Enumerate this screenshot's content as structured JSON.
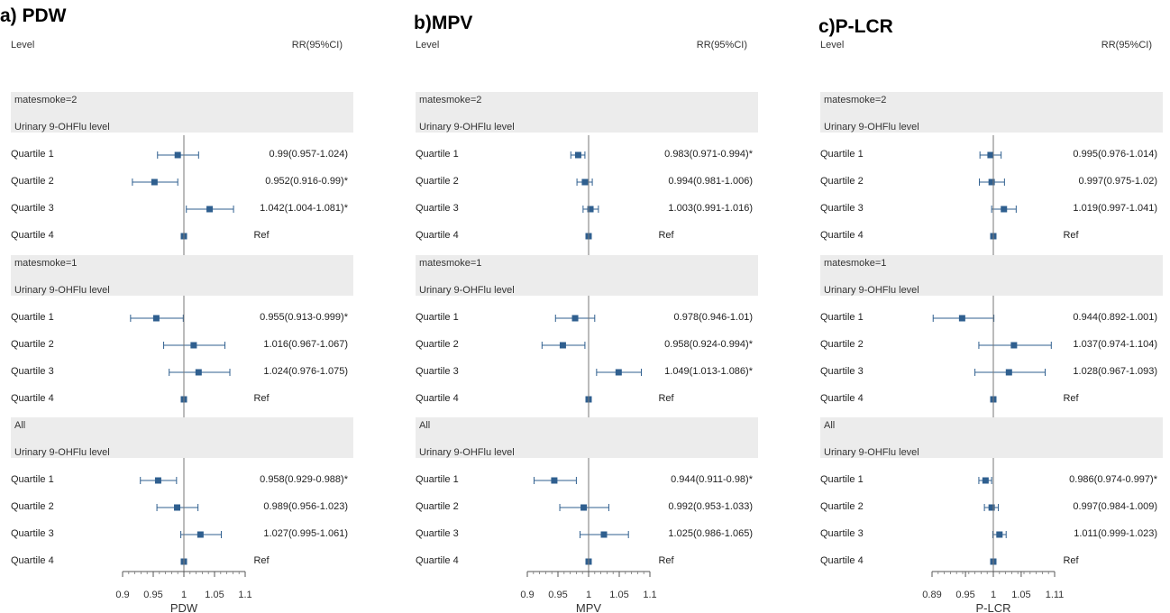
{
  "column_headers": {
    "level": "Level",
    "rr": "RR(95%CI)"
  },
  "sublabel": "Urinary 9-OHFlu level",
  "marker_color": "#2f5f8f",
  "band_color": "#ececec",
  "chart_data": [
    {
      "type": "forest",
      "title": "a) PDW",
      "xlabel": "PDW",
      "xlim": [
        0.9,
        1.1
      ],
      "ticks": [
        0.9,
        0.95,
        1,
        1.05,
        1.1
      ],
      "tick_labels": [
        "0.9",
        "0.95",
        "1",
        "1.05",
        "1.1"
      ],
      "reference_line": 1,
      "groups": [
        {
          "name": "matesmoke=2",
          "rows": [
            {
              "label": "Quartile 1",
              "est": 0.99,
              "lo": 0.957,
              "hi": 1.024,
              "text": "0.99(0.957-1.024)"
            },
            {
              "label": "Quartile 2",
              "est": 0.952,
              "lo": 0.916,
              "hi": 0.99,
              "text": "0.952(0.916-0.99)*"
            },
            {
              "label": "Quartile 3",
              "est": 1.042,
              "lo": 1.004,
              "hi": 1.081,
              "text": "1.042(1.004-1.081)*"
            },
            {
              "label": "Quartile 4",
              "est": 1,
              "lo": 1,
              "hi": 1,
              "text": "Ref",
              "ref": true
            }
          ]
        },
        {
          "name": "matesmoke=1",
          "rows": [
            {
              "label": "Quartile 1",
              "est": 0.955,
              "lo": 0.913,
              "hi": 0.999,
              "text": "0.955(0.913-0.999)*"
            },
            {
              "label": "Quartile 2",
              "est": 1.016,
              "lo": 0.967,
              "hi": 1.067,
              "text": "1.016(0.967-1.067)"
            },
            {
              "label": "Quartile 3",
              "est": 1.024,
              "lo": 0.976,
              "hi": 1.075,
              "text": "1.024(0.976-1.075)"
            },
            {
              "label": "Quartile 4",
              "est": 1,
              "lo": 1,
              "hi": 1,
              "text": "Ref",
              "ref": true
            }
          ]
        },
        {
          "name": "All",
          "rows": [
            {
              "label": "Quartile 1",
              "est": 0.958,
              "lo": 0.929,
              "hi": 0.988,
              "text": "0.958(0.929-0.988)*"
            },
            {
              "label": "Quartile 2",
              "est": 0.989,
              "lo": 0.956,
              "hi": 1.023,
              "text": "0.989(0.956-1.023)"
            },
            {
              "label": "Quartile 3",
              "est": 1.027,
              "lo": 0.995,
              "hi": 1.061,
              "text": "1.027(0.995-1.061)"
            },
            {
              "label": "Quartile 4",
              "est": 1,
              "lo": 1,
              "hi": 1,
              "text": "Ref",
              "ref": true
            }
          ]
        }
      ]
    },
    {
      "type": "forest",
      "title": "b)MPV",
      "xlabel": "MPV",
      "xlim": [
        0.9,
        1.1
      ],
      "ticks": [
        0.9,
        0.95,
        1,
        1.05,
        1.1
      ],
      "tick_labels": [
        "0.9",
        "0.95",
        "1",
        "1.05",
        "1.1"
      ],
      "reference_line": 1,
      "groups": [
        {
          "name": "matesmoke=2",
          "rows": [
            {
              "label": "Quartile 1",
              "est": 0.983,
              "lo": 0.971,
              "hi": 0.994,
              "text": "0.983(0.971-0.994)*"
            },
            {
              "label": "Quartile 2",
              "est": 0.994,
              "lo": 0.981,
              "hi": 1.006,
              "text": "0.994(0.981-1.006)"
            },
            {
              "label": "Quartile 3",
              "est": 1.003,
              "lo": 0.991,
              "hi": 1.016,
              "text": "1.003(0.991-1.016)"
            },
            {
              "label": "Quartile 4",
              "est": 1,
              "lo": 1,
              "hi": 1,
              "text": "Ref",
              "ref": true
            }
          ]
        },
        {
          "name": "matesmoke=1",
          "rows": [
            {
              "label": "Quartile 1",
              "est": 0.978,
              "lo": 0.946,
              "hi": 1.01,
              "text": "0.978(0.946-1.01)"
            },
            {
              "label": "Quartile 2",
              "est": 0.958,
              "lo": 0.924,
              "hi": 0.994,
              "text": "0.958(0.924-0.994)*"
            },
            {
              "label": "Quartile 3",
              "est": 1.049,
              "lo": 1.013,
              "hi": 1.086,
              "text": "1.049(1.013-1.086)*"
            },
            {
              "label": "Quartile 4",
              "est": 1,
              "lo": 1,
              "hi": 1,
              "text": "Ref",
              "ref": true
            }
          ]
        },
        {
          "name": "All",
          "rows": [
            {
              "label": "Quartile 1",
              "est": 0.944,
              "lo": 0.911,
              "hi": 0.98,
              "text": "0.944(0.911-0.98)*"
            },
            {
              "label": "Quartile 2",
              "est": 0.992,
              "lo": 0.953,
              "hi": 1.033,
              "text": "0.992(0.953-1.033)"
            },
            {
              "label": "Quartile 3",
              "est": 1.025,
              "lo": 0.986,
              "hi": 1.065,
              "text": "1.025(0.986-1.065)"
            },
            {
              "label": "Quartile 4",
              "est": 1,
              "lo": 1,
              "hi": 1,
              "text": "Ref",
              "ref": true
            }
          ]
        }
      ]
    },
    {
      "type": "forest",
      "title": "c)P-LCR",
      "xlabel": "P-LCR",
      "xlim": [
        0.89,
        1.11
      ],
      "ticks": [
        0.89,
        0.95,
        1,
        1.05,
        1.11
      ],
      "tick_labels": [
        "0.89",
        "0.95",
        "1",
        "1.05",
        "1.11"
      ],
      "reference_line": 1,
      "groups": [
        {
          "name": "matesmoke=2",
          "rows": [
            {
              "label": "Quartile 1",
              "est": 0.995,
              "lo": 0.976,
              "hi": 1.014,
              "text": "0.995(0.976-1.014)"
            },
            {
              "label": "Quartile 2",
              "est": 0.997,
              "lo": 0.975,
              "hi": 1.02,
              "text": "0.997(0.975-1.02)"
            },
            {
              "label": "Quartile 3",
              "est": 1.019,
              "lo": 0.997,
              "hi": 1.041,
              "text": "1.019(0.997-1.041)"
            },
            {
              "label": "Quartile 4",
              "est": 1,
              "lo": 1,
              "hi": 1,
              "text": "Ref",
              "ref": true
            }
          ]
        },
        {
          "name": "matesmoke=1",
          "rows": [
            {
              "label": "Quartile 1",
              "est": 0.944,
              "lo": 0.892,
              "hi": 1.001,
              "text": "0.944(0.892-1.001)"
            },
            {
              "label": "Quartile 2",
              "est": 1.037,
              "lo": 0.974,
              "hi": 1.104,
              "text": "1.037(0.974-1.104)"
            },
            {
              "label": "Quartile 3",
              "est": 1.028,
              "lo": 0.967,
              "hi": 1.093,
              "text": "1.028(0.967-1.093)"
            },
            {
              "label": "Quartile 4",
              "est": 1,
              "lo": 1,
              "hi": 1,
              "text": "Ref",
              "ref": true
            }
          ]
        },
        {
          "name": "All",
          "rows": [
            {
              "label": "Quartile 1",
              "est": 0.986,
              "lo": 0.974,
              "hi": 0.997,
              "text": "0.986(0.974-0.997)*"
            },
            {
              "label": "Quartile 2",
              "est": 0.997,
              "lo": 0.984,
              "hi": 1.009,
              "text": "0.997(0.984-1.009)"
            },
            {
              "label": "Quartile 3",
              "est": 1.011,
              "lo": 0.999,
              "hi": 1.023,
              "text": "1.011(0.999-1.023)"
            },
            {
              "label": "Quartile 4",
              "est": 1,
              "lo": 1,
              "hi": 1,
              "text": "Ref",
              "ref": true
            }
          ]
        }
      ]
    }
  ]
}
